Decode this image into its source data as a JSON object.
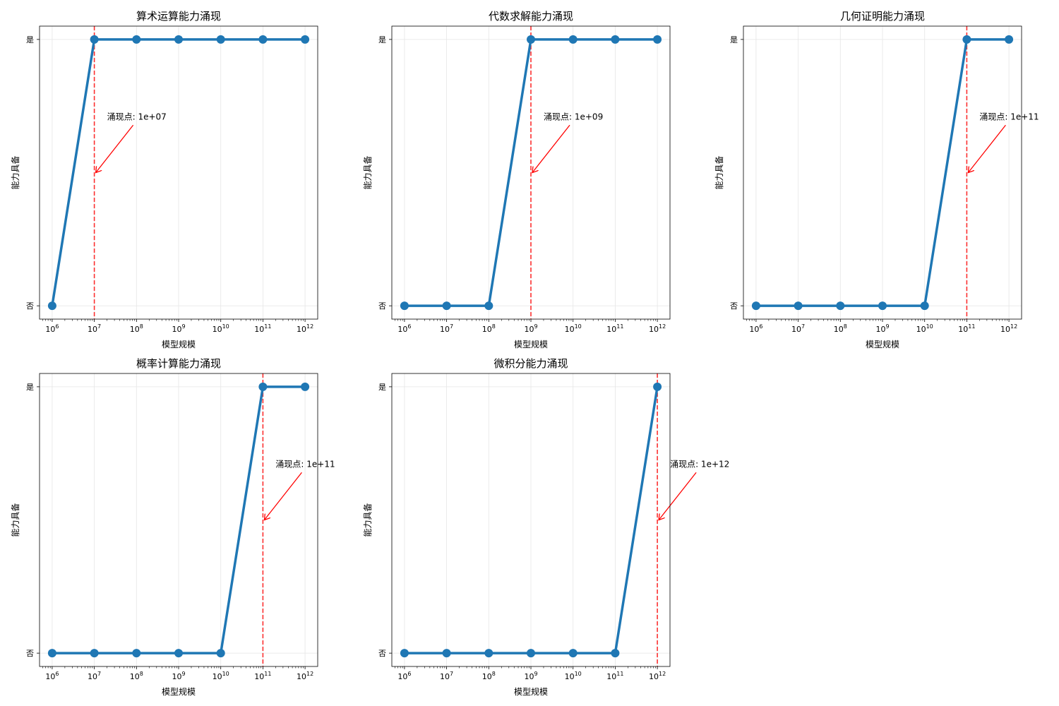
{
  "chart_data": [
    {
      "type": "line",
      "title": "算术运算能力涌现",
      "xlabel": "模型规模",
      "ylabel": "能力具备",
      "x_scale": "log",
      "x": [
        1000000,
        10000000,
        100000000,
        1000000000,
        10000000000,
        100000000000,
        1000000000000
      ],
      "x_tick_labels": [
        "10^6",
        "10^7",
        "10^8",
        "10^9",
        "10^10",
        "10^11",
        "10^12"
      ],
      "y_tick_labels": [
        "否",
        "是"
      ],
      "ylim": [
        -0.05,
        1.05
      ],
      "series": [
        {
          "values": [
            0,
            1,
            1,
            1,
            1,
            1,
            1
          ],
          "color": "#1f77b4"
        }
      ],
      "emergence_x": 10000000,
      "annotation": "涌现点: 1e+07",
      "grid": true
    },
    {
      "type": "line",
      "title": "代数求解能力涌现",
      "xlabel": "模型规模",
      "ylabel": "能力具备",
      "x_scale": "log",
      "x": [
        1000000,
        10000000,
        100000000,
        1000000000,
        10000000000,
        100000000000,
        1000000000000
      ],
      "x_tick_labels": [
        "10^6",
        "10^7",
        "10^8",
        "10^9",
        "10^10",
        "10^11",
        "10^12"
      ],
      "y_tick_labels": [
        "否",
        "是"
      ],
      "ylim": [
        -0.05,
        1.05
      ],
      "series": [
        {
          "values": [
            0,
            0,
            0,
            1,
            1,
            1,
            1
          ],
          "color": "#1f77b4"
        }
      ],
      "emergence_x": 1000000000,
      "annotation": "涌现点: 1e+09",
      "grid": true
    },
    {
      "type": "line",
      "title": "几何证明能力涌现",
      "xlabel": "模型规模",
      "ylabel": "能力具备",
      "x_scale": "log",
      "x": [
        1000000,
        10000000,
        100000000,
        1000000000,
        10000000000,
        100000000000,
        1000000000000
      ],
      "x_tick_labels": [
        "10^6",
        "10^7",
        "10^8",
        "10^9",
        "10^10",
        "10^11",
        "10^12"
      ],
      "y_tick_labels": [
        "否",
        "是"
      ],
      "ylim": [
        -0.05,
        1.05
      ],
      "series": [
        {
          "values": [
            0,
            0,
            0,
            0,
            0,
            1,
            1
          ],
          "color": "#1f77b4"
        }
      ],
      "emergence_x": 100000000000,
      "annotation": "涌现点: 1e+11",
      "grid": true
    },
    {
      "type": "line",
      "title": "概率计算能力涌现",
      "xlabel": "模型规模",
      "ylabel": "能力具备",
      "x_scale": "log",
      "x": [
        1000000,
        10000000,
        100000000,
        1000000000,
        10000000000,
        100000000000,
        1000000000000
      ],
      "x_tick_labels": [
        "10^6",
        "10^7",
        "10^8",
        "10^9",
        "10^10",
        "10^11",
        "10^12"
      ],
      "y_tick_labels": [
        "否",
        "是"
      ],
      "ylim": [
        -0.05,
        1.05
      ],
      "series": [
        {
          "values": [
            0,
            0,
            0,
            0,
            0,
            1,
            1
          ],
          "color": "#1f77b4"
        }
      ],
      "emergence_x": 100000000000,
      "annotation": "涌现点: 1e+11",
      "grid": true
    },
    {
      "type": "line",
      "title": "微积分能力涌现",
      "xlabel": "模型规模",
      "ylabel": "能力具备",
      "x_scale": "log",
      "x": [
        1000000,
        10000000,
        100000000,
        1000000000,
        10000000000,
        100000000000,
        1000000000000
      ],
      "x_tick_labels": [
        "10^6",
        "10^7",
        "10^8",
        "10^9",
        "10^10",
        "10^11",
        "10^12"
      ],
      "y_tick_labels": [
        "否",
        "是"
      ],
      "ylim": [
        -0.05,
        1.05
      ],
      "series": [
        {
          "values": [
            0,
            0,
            0,
            0,
            0,
            0,
            1
          ],
          "color": "#1f77b4"
        }
      ],
      "emergence_x": 1000000000000,
      "annotation": "涌现点: 1e+12",
      "grid": true
    }
  ],
  "colors": {
    "line": "#1f77b4",
    "emergence_line": "#ff0000",
    "grid": "#e6e6e6",
    "axes": "#000000"
  }
}
